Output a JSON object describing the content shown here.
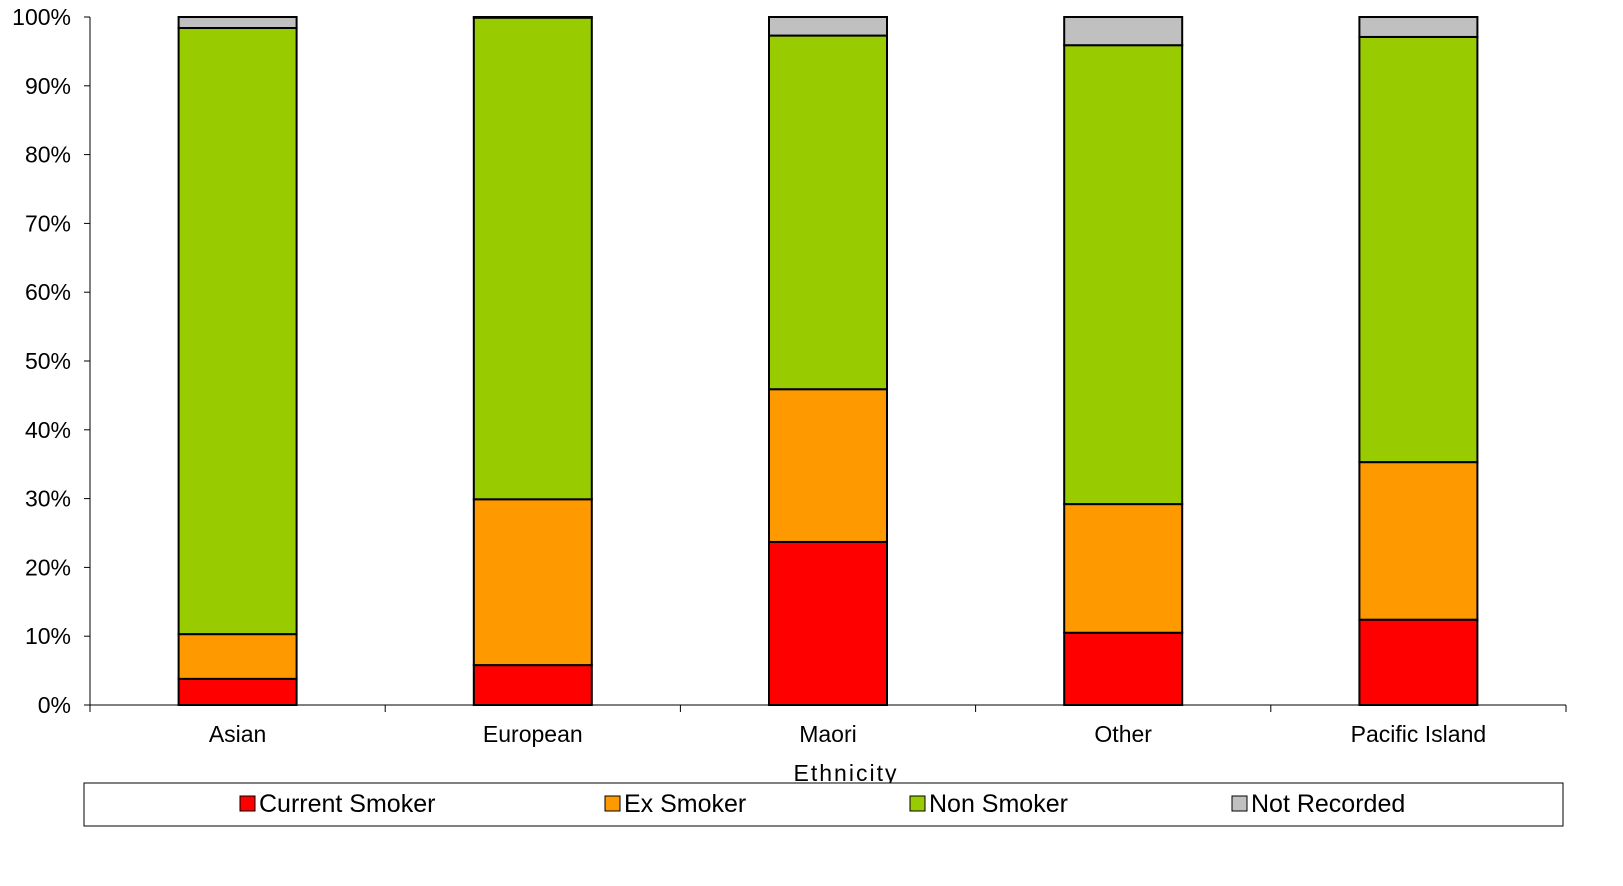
{
  "chart_data": {
    "type": "bar",
    "stacked": true,
    "percent_stacked": true,
    "categories": [
      "Asian",
      "European",
      "Maori",
      "Other",
      "Pacific Island"
    ],
    "series": [
      {
        "name": "Current Smoker",
        "color": "#ff0000",
        "values": [
          3.8,
          5.8,
          23.7,
          10.5,
          12.4
        ]
      },
      {
        "name": "Ex Smoker",
        "color": "#ff9900",
        "values": [
          6.5,
          24.1,
          22.2,
          18.7,
          22.9
        ]
      },
      {
        "name": "Non Smoker",
        "color": "#99cc00",
        "values": [
          88.1,
          70.0,
          51.4,
          66.7,
          61.8
        ]
      },
      {
        "name": "Not Recorded",
        "color": "#c0c0c0",
        "values": [
          1.6,
          0.1,
          2.7,
          4.1,
          2.9
        ]
      }
    ],
    "y_ticks": [
      "0%",
      "10%",
      "20%",
      "30%",
      "40%",
      "50%",
      "60%",
      "70%",
      "80%",
      "90%",
      "100%"
    ],
    "ylim": [
      0,
      100
    ],
    "xlabel": "Ethnicity",
    "ylabel": "",
    "title": "",
    "legend_position": "bottom",
    "grid": false
  }
}
